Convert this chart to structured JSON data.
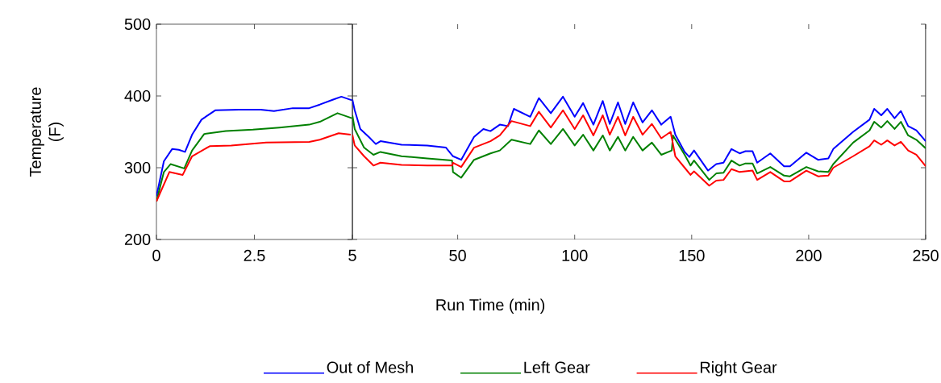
{
  "chart_data": [
    {
      "type": "line",
      "xlabel": "Run Time (min)",
      "ylabel": "Temperature (F)",
      "xlim": [
        0,
        5
      ],
      "xticks": [
        0,
        2.5,
        5
      ],
      "ylim": [
        200,
        500
      ],
      "yticks": [
        200,
        300,
        400,
        500
      ],
      "legend": "bottom",
      "series": [
        {
          "name": "Out of Mesh",
          "color": "#0000ff",
          "x": [
            0,
            0.19,
            0.4,
            0.57,
            0.73,
            0.91,
            1.15,
            1.5,
            2.11,
            2.66,
            3.0,
            3.48,
            3.9,
            4.17,
            4.51,
            4.72,
            4.99
          ],
          "values": [
            260,
            309,
            326,
            325,
            322,
            346,
            367,
            380,
            381,
            381,
            379,
            383,
            383,
            388,
            395,
            399,
            394
          ]
        },
        {
          "name": "Left Gear",
          "color": "#008000",
          "x": [
            0,
            0.19,
            0.36,
            0.71,
            0.91,
            1.22,
            1.77,
            2.46,
            3.14,
            3.9,
            4.17,
            4.62,
            4.99
          ],
          "values": [
            253,
            294,
            305,
            299,
            324,
            347,
            351,
            353,
            356,
            360,
            364,
            376,
            369
          ]
        },
        {
          "name": "Right Gear",
          "color": "#ff0000",
          "x": [
            0,
            0.33,
            0.67,
            0.91,
            1.36,
            1.91,
            2.8,
            3.9,
            4.17,
            4.65,
            4.96
          ],
          "values": [
            253,
            294,
            290,
            316,
            330,
            331,
            335,
            336,
            339,
            348,
            346
          ]
        }
      ]
    },
    {
      "type": "line",
      "xlim": [
        5,
        250
      ],
      "xticks": [
        50,
        100,
        150,
        200,
        250
      ],
      "ylim": [
        200,
        500
      ],
      "yticks": [
        200,
        300,
        400,
        500
      ],
      "tick_labels": "x",
      "series": [
        {
          "color": "#0000ff",
          "x": [
            5,
            6,
            8.4,
            12,
            15,
            17,
            26,
            37,
            45,
            48,
            51.5,
            57,
            61,
            64,
            68,
            71.5,
            74,
            81,
            84.7,
            89.8,
            95,
            100,
            103.6,
            108,
            112,
            115,
            118.5,
            121.6,
            125,
            129,
            133,
            137,
            141,
            143,
            147,
            149,
            151,
            157,
            160.5,
            163.6,
            167,
            170.5,
            173,
            176,
            178,
            183.6,
            189.5,
            192,
            199,
            204,
            208.4,
            210.5,
            219,
            226,
            228,
            231,
            233.6,
            236.7,
            239.4,
            242.5,
            246,
            250
          ],
          "values": [
            395,
            380,
            354,
            343,
            333,
            337,
            332,
            331,
            328,
            316,
            311,
            343,
            354,
            351,
            360,
            358,
            382,
            371,
            397,
            376,
            399,
            371,
            390,
            360,
            393,
            361,
            391,
            361,
            391,
            363,
            380,
            360,
            371,
            346,
            322,
            315,
            324,
            296,
            305,
            307,
            326,
            320,
            323,
            323,
            307,
            320,
            302,
            302,
            321,
            311,
            313,
            326,
            350,
            367,
            382,
            373,
            382,
            369,
            379,
            358,
            352,
            337
          ]
        },
        {
          "color": "#008000",
          "x": [
            5,
            6,
            10,
            14,
            17,
            26,
            37,
            47.6,
            48,
            51.5,
            57,
            64,
            68,
            73,
            81,
            84.7,
            89.8,
            95,
            100,
            103.6,
            108,
            112,
            115,
            118.5,
            121.6,
            125,
            129,
            133,
            137,
            141.5,
            142,
            147,
            149.5,
            151,
            157.5,
            160.5,
            163.6,
            167,
            170.5,
            173,
            176,
            178,
            183.6,
            189.5,
            192,
            199,
            204,
            208.4,
            210.5,
            219,
            226,
            228,
            231,
            233.6,
            236.7,
            239.4,
            242.5,
            246,
            250
          ],
          "values": [
            373,
            354,
            328,
            318,
            322,
            316,
            313,
            310,
            294,
            286,
            311,
            320,
            324,
            339,
            333,
            352,
            333,
            354,
            331,
            346,
            324,
            345,
            324,
            343,
            324,
            343,
            324,
            335,
            318,
            324,
            345,
            318,
            303,
            310,
            283,
            292,
            293,
            310,
            303,
            306,
            306,
            292,
            301,
            289,
            288,
            301,
            295,
            294,
            305,
            335,
            352,
            364,
            356,
            365,
            354,
            364,
            345,
            339,
            327
          ]
        },
        {
          "color": "#ff0000",
          "x": [
            5,
            6,
            10,
            14,
            17,
            26,
            37,
            47.6,
            48,
            51.5,
            57,
            64,
            68,
            73,
            81,
            84.7,
            89.8,
            95,
            100,
            103.6,
            108,
            112,
            115,
            118.5,
            121.6,
            125,
            129,
            133,
            137,
            141,
            143,
            147,
            149.5,
            151,
            157.5,
            160.5,
            163.6,
            167,
            170.5,
            176,
            178,
            183.6,
            189.5,
            192,
            199,
            204,
            208.4,
            210.5,
            219,
            226,
            228,
            231,
            233.6,
            236.7,
            239.4,
            242.5,
            246,
            250
          ],
          "values": [
            346,
            331,
            316,
            303,
            307,
            304,
            303,
            303,
            307,
            301,
            328,
            337,
            345,
            365,
            358,
            378,
            356,
            380,
            354,
            373,
            345,
            373,
            346,
            371,
            345,
            371,
            346,
            361,
            341,
            350,
            316,
            300,
            290,
            295,
            275,
            282,
            283,
            298,
            294,
            296,
            283,
            294,
            281,
            281,
            296,
            288,
            289,
            300,
            316,
            330,
            338,
            332,
            338,
            331,
            336,
            324,
            318,
            302
          ]
        }
      ]
    }
  ]
}
